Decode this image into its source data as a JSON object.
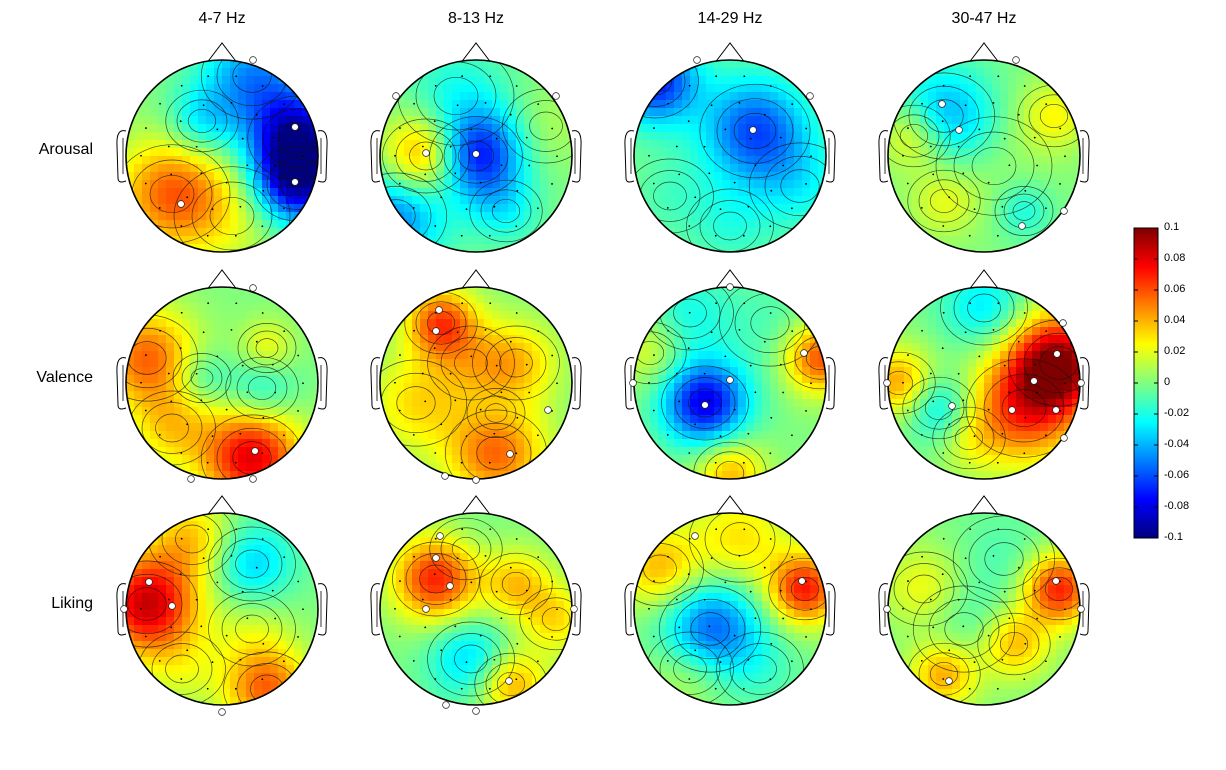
{
  "column_labels": [
    "4-7 Hz",
    "8-13 Hz",
    "14-29 Hz",
    "30-47 Hz"
  ],
  "row_labels": [
    "Arousal",
    "Valence",
    "Liking"
  ],
  "colorbar": {
    "min": -0.1,
    "max": 0.1,
    "tick_labels": [
      "0.1",
      "0.08",
      "0.06",
      "0.04",
      "0.02",
      "0",
      "-0.02",
      "-0.04",
      "-0.06",
      "-0.08",
      "-0.1"
    ],
    "colormap": "jet",
    "colors": [
      "#00007F",
      "#0000FF",
      "#0080FF",
      "#00FFFF",
      "#80FF80",
      "#FFFF00",
      "#FF8000",
      "#FF0000",
      "#7F0000"
    ]
  },
  "topoplots": [
    {
      "row": "Arousal",
      "band": "4-7 Hz",
      "dominant": "negative"
    },
    {
      "row": "Arousal",
      "band": "8-13 Hz",
      "dominant": "negative"
    },
    {
      "row": "Arousal",
      "band": "14-29 Hz",
      "dominant": "negative"
    },
    {
      "row": "Arousal",
      "band": "30-47 Hz",
      "dominant": "negative"
    },
    {
      "row": "Valence",
      "band": "4-7 Hz",
      "dominant": "positive"
    },
    {
      "row": "Valence",
      "band": "8-13 Hz",
      "dominant": "positive"
    },
    {
      "row": "Valence",
      "band": "14-29 Hz",
      "dominant": "negative"
    },
    {
      "row": "Valence",
      "band": "30-47 Hz",
      "dominant": "positive"
    },
    {
      "row": "Liking",
      "band": "4-7 Hz",
      "dominant": "positive"
    },
    {
      "row": "Liking",
      "band": "8-13 Hz",
      "dominant": "positive"
    },
    {
      "row": "Liking",
      "band": "14-29 Hz",
      "dominant": "mixed"
    },
    {
      "row": "Liking",
      "band": "30-47 Hz",
      "dominant": "mixed"
    }
  ]
}
